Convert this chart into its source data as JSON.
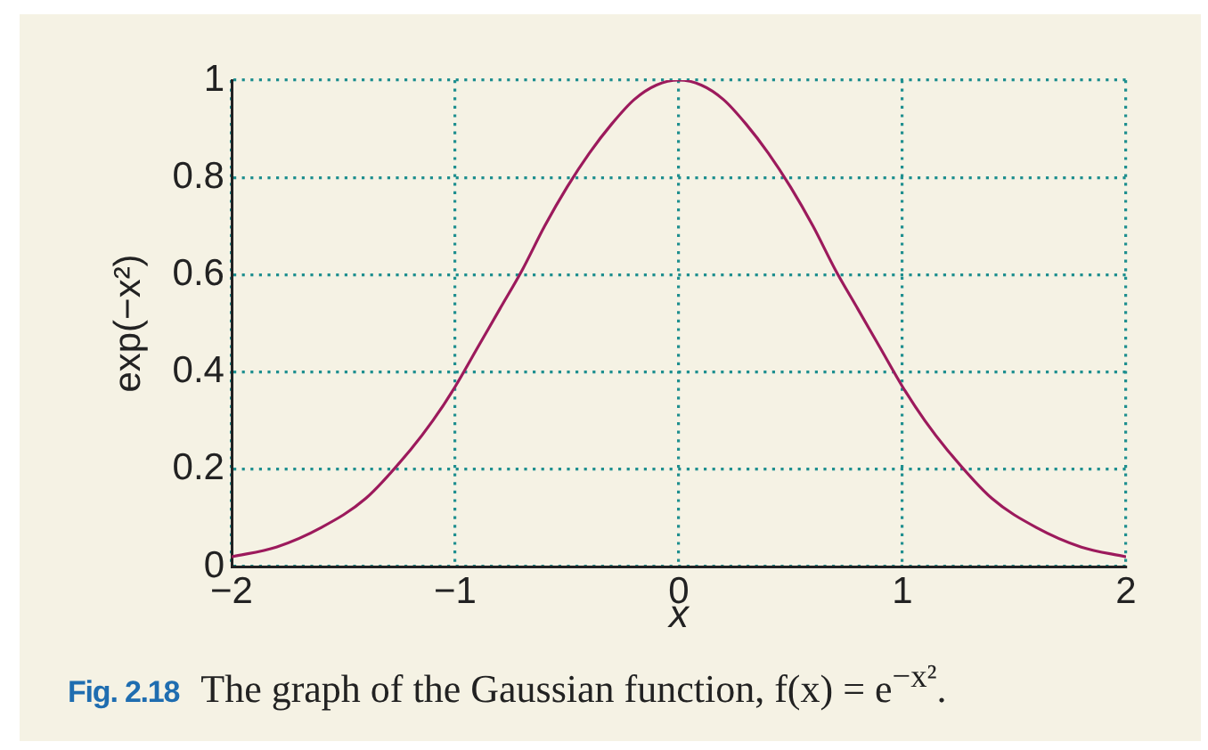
{
  "chart_data": {
    "type": "line",
    "x": [
      -2,
      -1.8,
      -1.6,
      -1.4,
      -1.2,
      -1.1,
      -1,
      -0.9,
      -0.8,
      -0.7,
      -0.6,
      -0.5,
      -0.4,
      -0.3,
      -0.2,
      -0.1,
      0,
      0.1,
      0.2,
      0.3,
      0.4,
      0.5,
      0.6,
      0.7,
      0.8,
      0.9,
      1,
      1.1,
      1.2,
      1.4,
      1.6,
      1.8,
      2
    ],
    "values": [
      0.02,
      0.04,
      0.08,
      0.14,
      0.24,
      0.3,
      0.37,
      0.45,
      0.53,
      0.61,
      0.7,
      0.78,
      0.85,
      0.91,
      0.96,
      0.99,
      1,
      0.99,
      0.96,
      0.91,
      0.85,
      0.78,
      0.7,
      0.61,
      0.53,
      0.45,
      0.37,
      0.3,
      0.24,
      0.14,
      0.08,
      0.04,
      0.02
    ],
    "color": "#9c1a5c",
    "xlabel": "x",
    "ylabel": "exp(−x²)",
    "xlim": [
      -2,
      2
    ],
    "xticks": [
      {
        "value": -2,
        "label": "−2"
      },
      {
        "value": -1,
        "label": "−1"
      },
      0,
      1,
      2
    ],
    "ylim": [
      0,
      1
    ],
    "yticks": [
      0,
      0.2,
      0.4,
      0.6,
      0.8,
      1
    ],
    "grid": true,
    "legend": false,
    "marker": "none",
    "line_style": "solid",
    "annotations": [
      "Fig. 2.18",
      "The graph of the Gaussian function, f(x) = e$^{−x²}$."
    ]
  }
}
